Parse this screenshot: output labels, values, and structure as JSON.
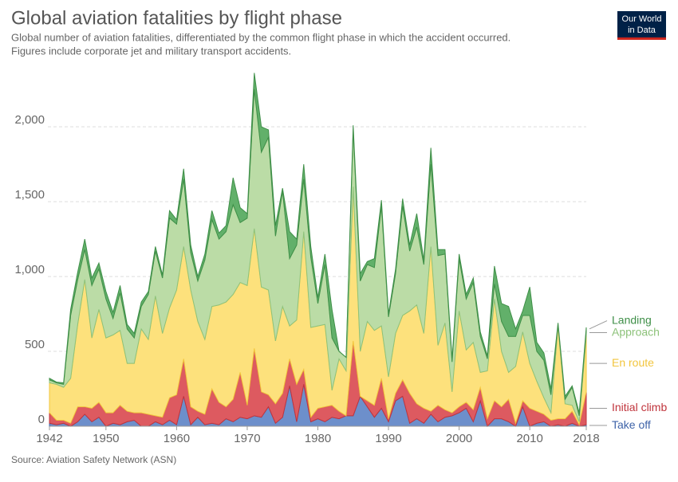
{
  "header": {
    "logo": [
      "Our World",
      "in Data"
    ]
  },
  "chart_data": {
    "type": "stacked-area",
    "title": "Global aviation fatalities by flight phase",
    "subtitle": [
      "Global number of aviation fatalities, differentiated by the common flight phase in which the accident occurred.",
      "Figures include corporate jet and military transport accidents."
    ],
    "source": "Source: Aviation Safety Network (ASN)",
    "x": [
      1942,
      1943,
      1944,
      1945,
      1946,
      1947,
      1948,
      1949,
      1950,
      1951,
      1952,
      1953,
      1954,
      1955,
      1956,
      1957,
      1958,
      1959,
      1960,
      1961,
      1962,
      1963,
      1964,
      1965,
      1966,
      1967,
      1968,
      1969,
      1970,
      1971,
      1972,
      1973,
      1974,
      1975,
      1976,
      1977,
      1978,
      1979,
      1980,
      1981,
      1982,
      1983,
      1984,
      1985,
      1986,
      1987,
      1988,
      1989,
      1990,
      1991,
      1992,
      1993,
      1994,
      1995,
      1996,
      1997,
      1998,
      1999,
      2000,
      2001,
      2002,
      2003,
      2004,
      2005,
      2006,
      2007,
      2008,
      2009,
      2010,
      2011,
      2012,
      2013,
      2014,
      2015,
      2016,
      2017,
      2018
    ],
    "xlim": [
      1942,
      2018
    ],
    "xticks": [
      1942,
      1950,
      1960,
      1970,
      1980,
      1990,
      2000,
      2010,
      2018
    ],
    "ylim": [
      0,
      2400
    ],
    "yticks": [
      0,
      500,
      {
        "value": 1000,
        "label": "1,000"
      },
      {
        "value": 1500,
        "label": "1,500"
      },
      {
        "value": 2000,
        "label": "2,000"
      }
    ],
    "grid": true,
    "series": [
      {
        "name": "Take off",
        "color": "#6d8fcb",
        "line": "#3e63a8",
        "values": [
          20,
          10,
          20,
          0,
          30,
          80,
          30,
          60,
          0,
          20,
          10,
          30,
          40,
          0,
          0,
          30,
          10,
          40,
          10,
          200,
          10,
          60,
          10,
          20,
          10,
          50,
          30,
          60,
          50,
          70,
          60,
          130,
          20,
          60,
          270,
          30,
          280,
          30,
          50,
          30,
          60,
          50,
          70,
          70,
          200,
          130,
          60,
          120,
          30,
          170,
          200,
          20,
          50,
          20,
          80,
          30,
          60,
          70,
          90,
          120,
          30,
          170,
          0,
          50,
          50,
          30,
          0,
          130,
          0,
          20,
          30,
          0,
          10,
          0,
          20,
          0,
          10
        ]
      },
      {
        "name": "Initial climb",
        "color": "#dd5a60",
        "line": "#c0343c",
        "values": [
          70,
          30,
          20,
          20,
          100,
          50,
          90,
          100,
          90,
          70,
          130,
          70,
          50,
          90,
          80,
          40,
          50,
          150,
          200,
          250,
          120,
          40,
          70,
          230,
          150,
          80,
          150,
          300,
          90,
          450,
          170,
          80,
          130,
          160,
          180,
          250,
          100,
          30,
          70,
          100,
          80,
          50,
          0,
          500,
          0,
          40,
          80,
          200,
          20,
          50,
          110,
          200,
          100,
          100,
          20,
          110,
          50,
          20,
          40,
          40,
          80,
          90,
          50,
          120,
          80,
          150,
          20,
          40,
          120,
          80,
          50,
          40,
          40,
          50,
          80,
          10,
          220
        ]
      },
      {
        "name": "En route",
        "color": "#fde17c",
        "line": "#f2c53d",
        "values": [
          200,
          240,
          220,
          300,
          550,
          850,
          470,
          620,
          500,
          520,
          500,
          320,
          330,
          560,
          500,
          800,
          560,
          600,
          700,
          750,
          780,
          600,
          500,
          550,
          650,
          700,
          700,
          600,
          800,
          800,
          700,
          700,
          420,
          580,
          220,
          430,
          920,
          600,
          550,
          550,
          100,
          350,
          300,
          1030,
          300,
          530,
          500,
          350,
          280,
          400,
          430,
          550,
          660,
          500,
          1100,
          400,
          580,
          140,
          640,
          350,
          450,
          100,
          320,
          680,
          370,
          180,
          380,
          460,
          300,
          200,
          110,
          50,
          620,
          100,
          40,
          20,
          380
        ]
      },
      {
        "name": "Approach",
        "color": "#bbdca6",
        "line": "#8dc27a",
        "values": [
          20,
          10,
          20,
          420,
          300,
          200,
          350,
          270,
          260,
          110,
          250,
          230,
          170,
          150,
          300,
          300,
          370,
          600,
          440,
          450,
          250,
          270,
          530,
          580,
          440,
          470,
          600,
          400,
          450,
          930,
          900,
          1020,
          700,
          770,
          450,
          500,
          350,
          470,
          150,
          400,
          350,
          50,
          90,
          380,
          470,
          380,
          420,
          800,
          400,
          400,
          730,
          400,
          520,
          460,
          550,
          600,
          460,
          200,
          350,
          340,
          400,
          240,
          80,
          100,
          200,
          240,
          200,
          110,
          320,
          200,
          250,
          120,
          10,
          30,
          120,
          40,
          30
        ]
      },
      {
        "name": "Landing",
        "color": "#62b06a",
        "line": "#3f8f48",
        "values": [
          10,
          5,
          10,
          40,
          50,
          70,
          50,
          40,
          50,
          40,
          50,
          30,
          30,
          30,
          20,
          30,
          20,
          50,
          30,
          70,
          50,
          30,
          40,
          60,
          40,
          40,
          180,
          100,
          30,
          110,
          170,
          50,
          70,
          20,
          180,
          40,
          100,
          70,
          40,
          70,
          190,
          0,
          0,
          30,
          50,
          20,
          60,
          40,
          20,
          30,
          50,
          40,
          90,
          30,
          110,
          40,
          30,
          20,
          30,
          30,
          30,
          30,
          20,
          120,
          120,
          200,
          50,
          30,
          190,
          60,
          50,
          40,
          10,
          20,
          10,
          20,
          20
        ]
      }
    ]
  }
}
